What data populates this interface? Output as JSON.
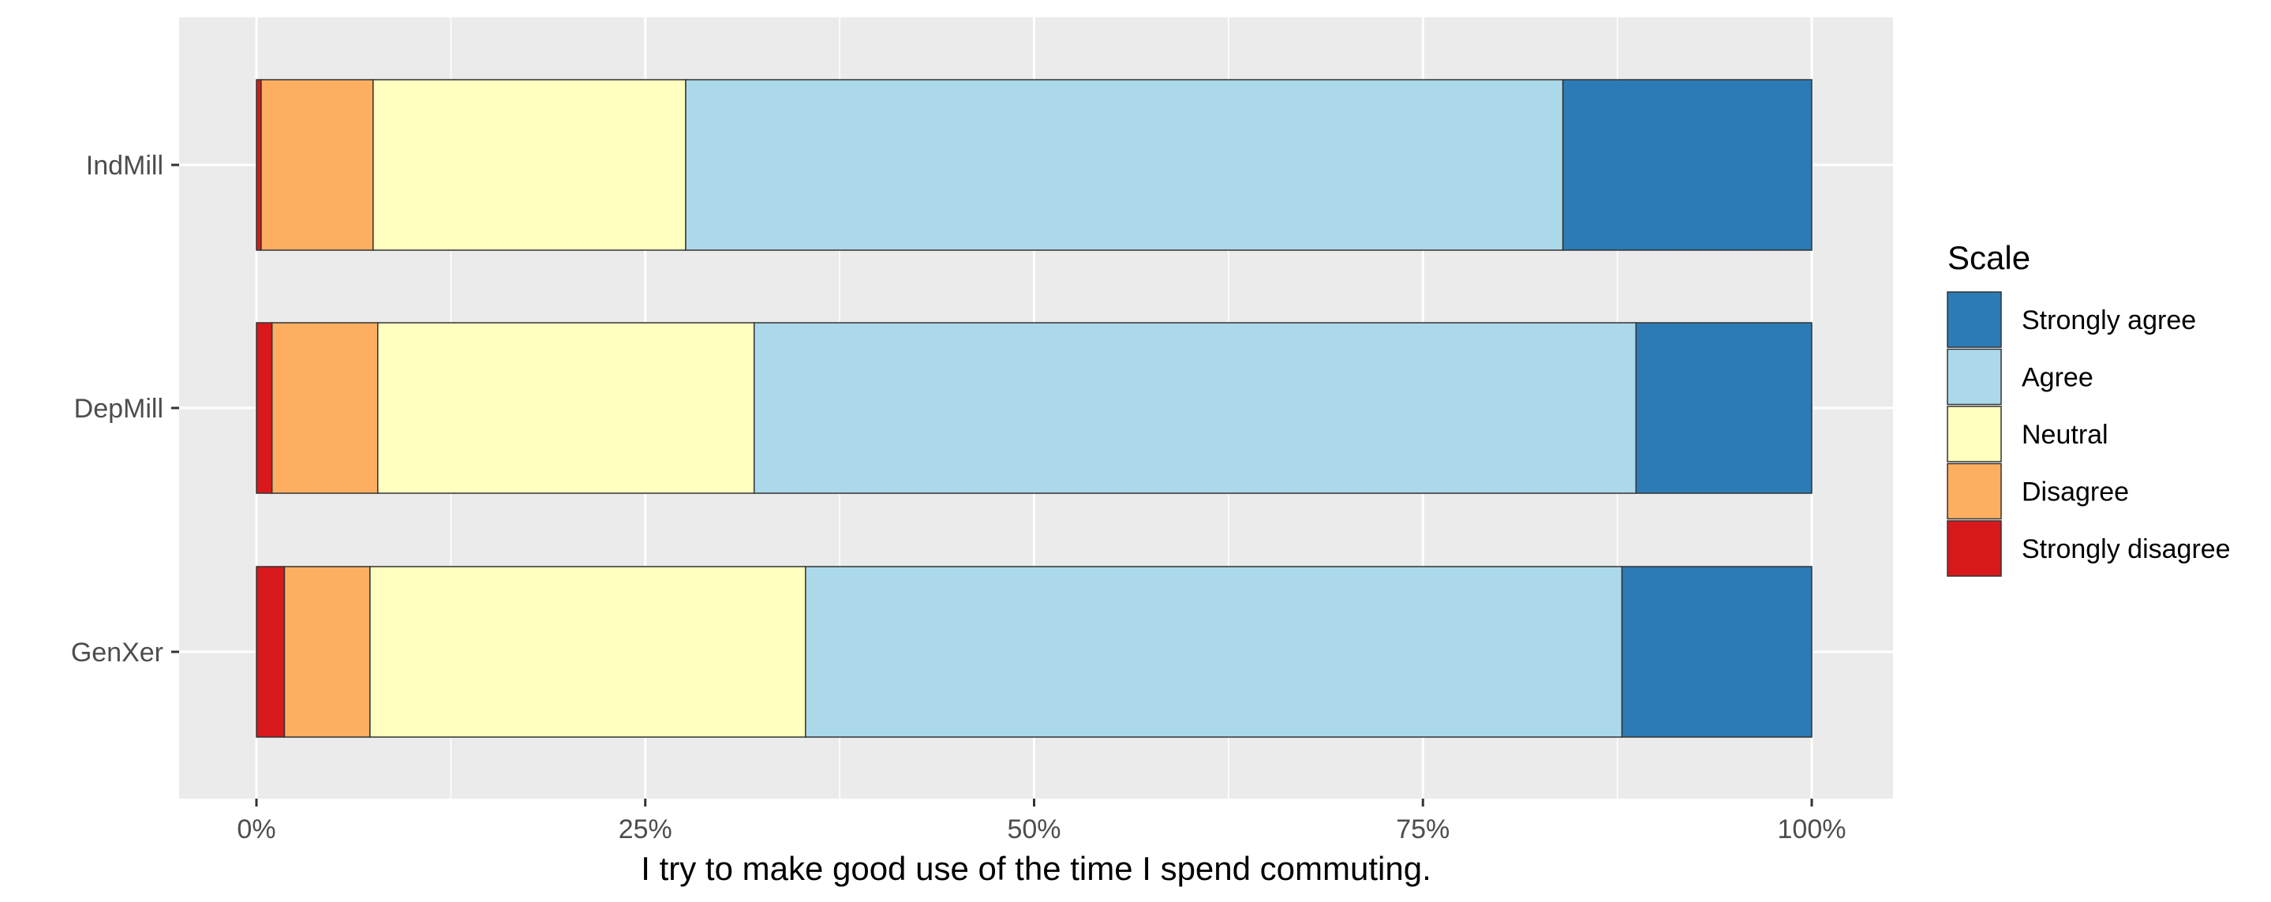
{
  "chart_data": {
    "type": "bar",
    "orientation": "horizontal",
    "stacked": "percent",
    "title": "",
    "xlabel": "I try to make good use of the time I spend commuting.",
    "ylabel": "",
    "xlim": [
      0,
      1
    ],
    "x_ticks": [
      0,
      0.25,
      0.5,
      0.75,
      1
    ],
    "x_tick_labels": [
      "0%",
      "25%",
      "50%",
      "75%",
      "100%"
    ],
    "categories": [
      "GenXer",
      "DepMill",
      "IndMill"
    ],
    "series": [
      {
        "name": "Strongly disagree",
        "color": "#d7191c",
        "values": [
          0.018,
          0.01,
          0.003
        ]
      },
      {
        "name": "Disagree",
        "color": "#fdae61",
        "values": [
          0.055,
          0.068,
          0.072
        ]
      },
      {
        "name": "Neutral",
        "color": "#ffffbf",
        "values": [
          0.28,
          0.242,
          0.201
        ]
      },
      {
        "name": "Agree",
        "color": "#abd9e9",
        "values": [
          0.525,
          0.567,
          0.564
        ]
      },
      {
        "name": "Strongly agree",
        "color": "#2c7bb6",
        "values": [
          0.122,
          0.113,
          0.16
        ]
      }
    ],
    "legend": {
      "title": "Scale",
      "position": "right",
      "order": [
        "Strongly agree",
        "Agree",
        "Neutral",
        "Disagree",
        "Strongly disagree"
      ]
    },
    "panel_background": "#ebebeb",
    "grid": true
  }
}
